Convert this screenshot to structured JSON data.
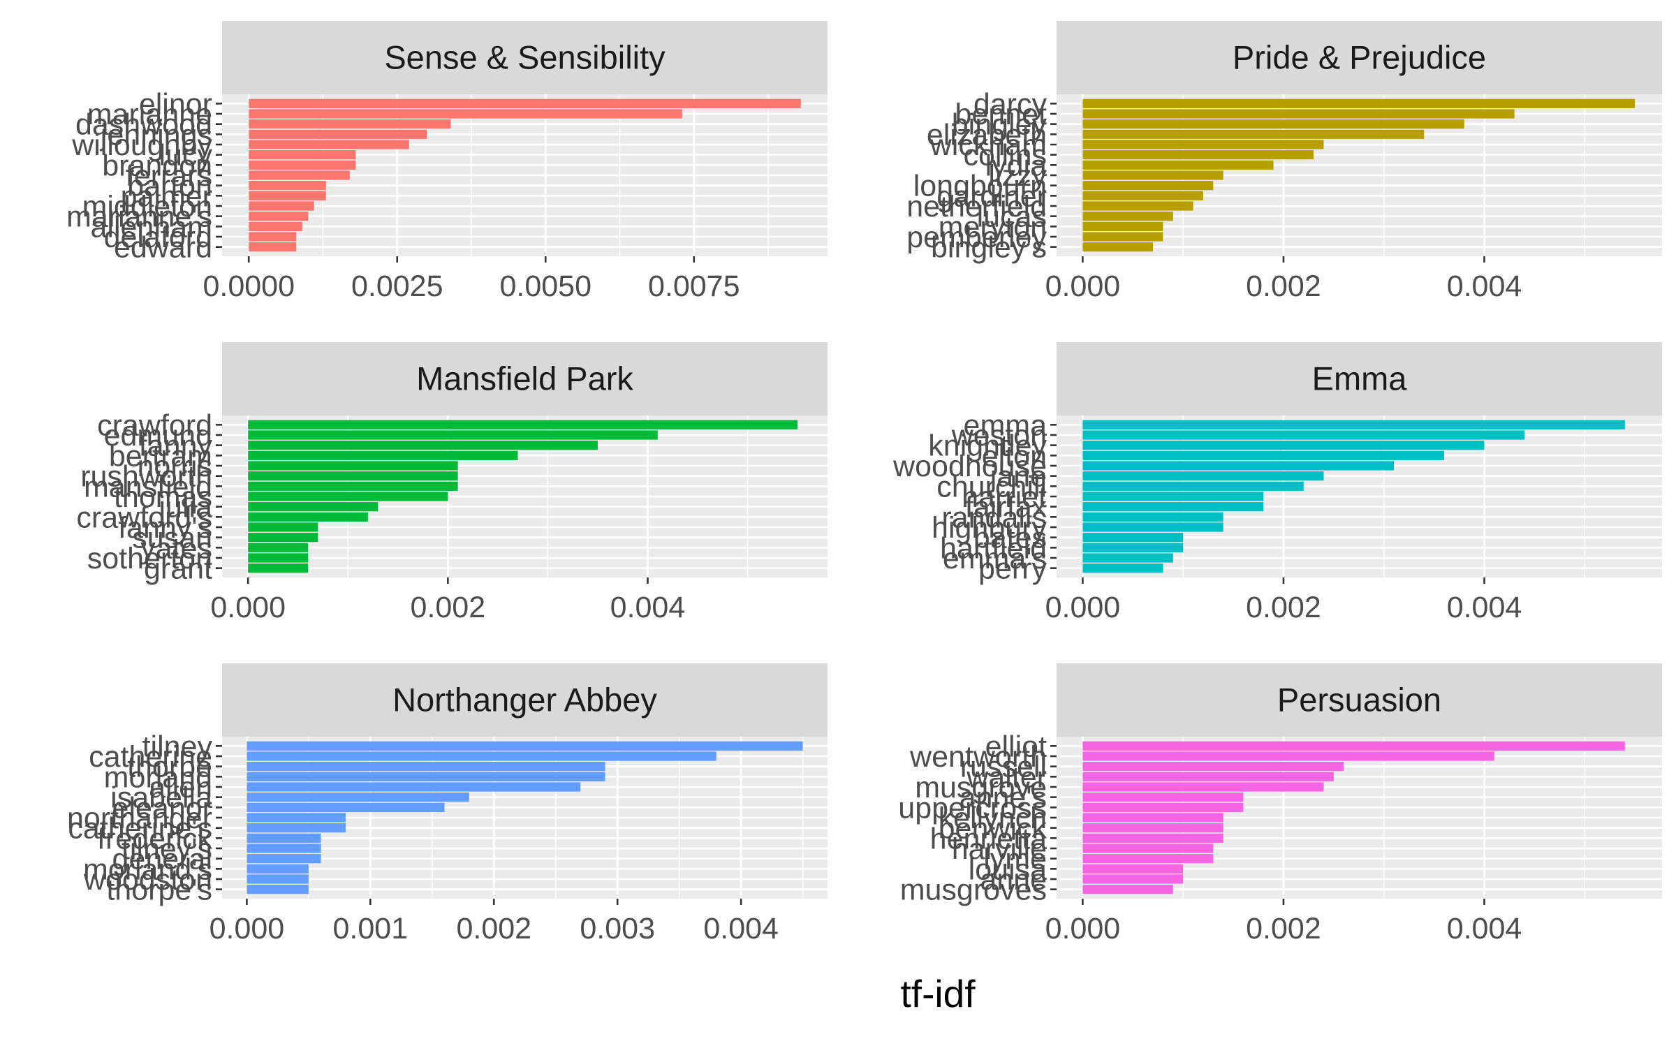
{
  "chart_data": [
    {
      "type": "bar",
      "orientation": "horizontal",
      "title": "Sense & Sensibility",
      "color": "#F8766D",
      "categories": [
        "elinor",
        "marianne",
        "dashwood",
        "jennings",
        "willoughby",
        "lucy",
        "brandon",
        "ferrars",
        "barton",
        "palmer",
        "middleton",
        "marianne's",
        "allenham",
        "delaford",
        "edward"
      ],
      "values": [
        0.0093,
        0.0073,
        0.0034,
        0.003,
        0.0027,
        0.0018,
        0.0018,
        0.0017,
        0.0013,
        0.0013,
        0.0011,
        0.001,
        0.0009,
        0.0008,
        0.0008
      ],
      "xlim": [
        -0.00045,
        0.00975
      ],
      "xticks": [
        0,
        0.0025,
        0.005,
        0.0075
      ],
      "xtick_labels": [
        "0.0000",
        "0.0025",
        "0.0050",
        "0.0075"
      ]
    },
    {
      "type": "bar",
      "orientation": "horizontal",
      "title": "Pride & Prejudice",
      "color": "#B79F00",
      "categories": [
        "darcy",
        "bennet",
        "bingley",
        "elizabeth",
        "wickham",
        "collins",
        "lydia",
        "lizzy",
        "longbourn",
        "gardiner",
        "netherfield",
        "lucas",
        "meryton",
        "pemberley",
        "bingley's"
      ],
      "values": [
        0.0055,
        0.0043,
        0.0038,
        0.0034,
        0.0024,
        0.0023,
        0.0019,
        0.0014,
        0.0013,
        0.0012,
        0.0011,
        0.0009,
        0.0008,
        0.0008,
        0.0007
      ],
      "xlim": [
        -0.00026,
        0.00577
      ],
      "xticks": [
        0,
        0.002,
        0.004
      ],
      "xtick_labels": [
        "0.000",
        "0.002",
        "0.004"
      ]
    },
    {
      "type": "bar",
      "orientation": "horizontal",
      "title": "Mansfield Park",
      "color": "#00BA38",
      "categories": [
        "crawford",
        "edmund",
        "fanny",
        "bertram",
        "norris",
        "rushworth",
        "mansfield",
        "thomas",
        "julia",
        "crawford's",
        "fanny's",
        "susan",
        "yates",
        "sotherton",
        "grant"
      ],
      "values": [
        0.0055,
        0.0041,
        0.0035,
        0.0027,
        0.0021,
        0.0021,
        0.0021,
        0.002,
        0.0013,
        0.0012,
        0.0007,
        0.0007,
        0.0006,
        0.0006,
        0.0006
      ],
      "xlim": [
        -0.00026,
        0.0058
      ],
      "xticks": [
        0,
        0.002,
        0.004
      ],
      "xtick_labels": [
        "0.000",
        "0.002",
        "0.004"
      ]
    },
    {
      "type": "bar",
      "orientation": "horizontal",
      "title": "Emma",
      "color": "#00BFC4",
      "categories": [
        "emma",
        "weston",
        "knightley",
        "elton",
        "woodhouse",
        "jane",
        "churchill",
        "harriet",
        "fairfax",
        "randalls",
        "highbury",
        "bates",
        "hartfield",
        "emma's",
        "perry"
      ],
      "values": [
        0.0054,
        0.0044,
        0.004,
        0.0036,
        0.0031,
        0.0024,
        0.0022,
        0.0018,
        0.0018,
        0.0014,
        0.0014,
        0.001,
        0.001,
        0.0009,
        0.0008
      ],
      "xlim": [
        -0.00026,
        0.00577
      ],
      "xticks": [
        0,
        0.002,
        0.004
      ],
      "xtick_labels": [
        "0.000",
        "0.002",
        "0.004"
      ]
    },
    {
      "type": "bar",
      "orientation": "horizontal",
      "title": "Northanger Abbey",
      "color": "#619CFF",
      "categories": [
        "tilney",
        "catherine",
        "thorpe",
        "morland",
        "allen",
        "isabella",
        "eleanor",
        "northanger",
        "catherine's",
        "frederick",
        "tilney's",
        "general",
        "morland's",
        "woodston",
        "thorpe's"
      ],
      "values": [
        0.0045,
        0.0038,
        0.0029,
        0.0029,
        0.0027,
        0.0018,
        0.0016,
        0.0008,
        0.0008,
        0.0006,
        0.0006,
        0.0006,
        0.0005,
        0.0005,
        0.0005
      ],
      "xlim": [
        -0.0002,
        0.0047
      ],
      "xticks": [
        0,
        0.001,
        0.002,
        0.003,
        0.004
      ],
      "xtick_labels": [
        "0.000",
        "0.001",
        "0.002",
        "0.003",
        "0.004"
      ]
    },
    {
      "type": "bar",
      "orientation": "horizontal",
      "title": "Persuasion",
      "color": "#F564E3",
      "categories": [
        "elliot",
        "wentworth",
        "russell",
        "walter",
        "musgrove",
        "anne's",
        "uppercross",
        "kellynch",
        "benwick",
        "henrietta",
        "harville",
        "lyme",
        "louisa",
        "anne",
        "musgroves"
      ],
      "values": [
        0.0054,
        0.0041,
        0.0026,
        0.0025,
        0.0024,
        0.0016,
        0.0016,
        0.0014,
        0.0014,
        0.0014,
        0.0013,
        0.0013,
        0.001,
        0.001,
        0.0009
      ],
      "xlim": [
        -0.00026,
        0.00577
      ],
      "xticks": [
        0,
        0.002,
        0.004
      ],
      "xtick_labels": [
        "0.000",
        "0.002",
        "0.004"
      ]
    }
  ],
  "xlabel": "tf-idf"
}
